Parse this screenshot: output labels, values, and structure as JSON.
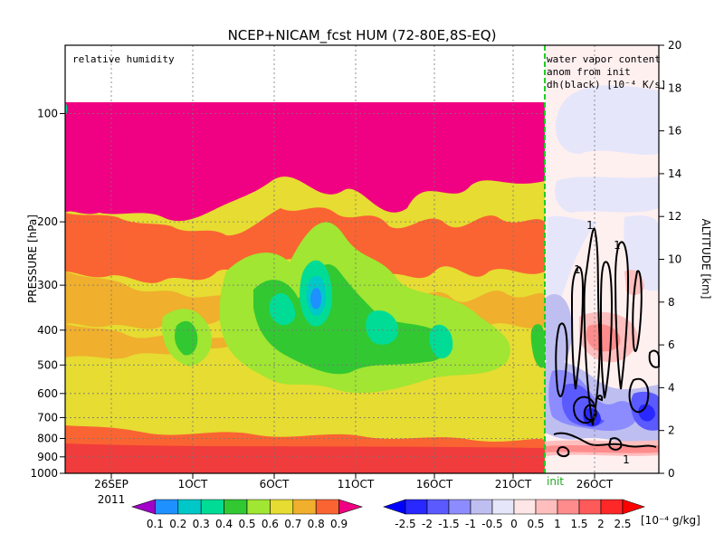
{
  "chart_data": {
    "type": "heatmap",
    "title": "NCEP+NICAM_fcst HUM (72-80E,8S-EQ)",
    "left_annotation": "relative humidity",
    "right_annotation": [
      "water vapor content",
      "anom from init",
      "dh(black) [10⁻⁴ K/s]"
    ],
    "init_label": "init",
    "ylabel_left": "PRESSURE [hPa]",
    "ylabel_right": "ALTITUDE [km]",
    "x_ticks": [
      "26SEP",
      "1OCT",
      "6OCT",
      "11OCT",
      "16OCT",
      "21OCT",
      "26OCT"
    ],
    "x_year": "2011",
    "pressure_ticks": [
      100,
      200,
      300,
      400,
      500,
      600,
      700,
      800,
      900,
      1000
    ],
    "altitude_ticks": [
      0,
      2,
      4,
      6,
      8,
      10,
      12,
      14,
      16,
      18,
      20
    ],
    "contour_label": "1",
    "rh_colorbar": {
      "labels": [
        "0.1",
        "0.2",
        "0.3",
        "0.4",
        "0.5",
        "0.6",
        "0.7",
        "0.8",
        "0.9"
      ],
      "colors": [
        "#a000c8",
        "#1e90ff",
        "#00c8c8",
        "#00dc96",
        "#32c832",
        "#a0e632",
        "#e6dc32",
        "#f0af2d",
        "#fa6432",
        "#f00082"
      ]
    },
    "anom_colorbar": {
      "labels": [
        "-2.5",
        "-2",
        "-1.5",
        "-1",
        "-0.5",
        "0",
        "0.5",
        "1",
        "1.5",
        "2",
        "2.5"
      ],
      "unit": "[10⁻⁴ g/kg]",
      "colors": [
        "#0000ff",
        "#2828ff",
        "#5a5aff",
        "#8c8cff",
        "#bebef0",
        "#e6e6fa",
        "#ffe6e6",
        "#ffbebe",
        "#ff8c8c",
        "#ff5a5a",
        "#ff2828",
        "#ff0000"
      ]
    }
  }
}
